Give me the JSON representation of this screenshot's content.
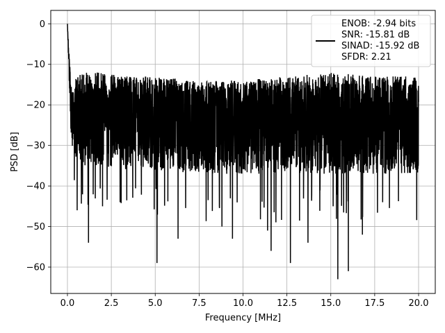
{
  "chart_data": {
    "type": "line",
    "title": "",
    "xlabel": "Frequency [MHz]",
    "ylabel": "PSD [dB]",
    "xlim": [
      -0.95,
      20.95
    ],
    "ylim": [
      -66.5,
      3.3
    ],
    "x_ticks": [
      0.0,
      2.5,
      5.0,
      7.5,
      10.0,
      12.5,
      15.0,
      17.5,
      20.0
    ],
    "x_tick_labels": [
      "0.0",
      "2.5",
      "5.0",
      "7.5",
      "10.0",
      "12.5",
      "15.0",
      "17.5",
      "20.0"
    ],
    "y_ticks": [
      0,
      -10,
      -20,
      -30,
      -40,
      -50,
      -60
    ],
    "y_tick_labels": [
      "0",
      "−10",
      "−20",
      "−30",
      "−40",
      "−50",
      "−60"
    ],
    "grid": true,
    "legend_position": "top-right",
    "series": [
      {
        "name": "ENOB: -2.94 bits\nSNR: -15.81 dB\nSINAD: -15.92 dB\nSFDR: 2.21",
        "color": "#000000",
        "envelope": {
          "x": [
            0.0,
            0.1,
            0.2,
            0.3,
            0.5,
            1.0,
            2.0,
            3.0,
            5.0,
            7.5,
            10.0,
            12.5,
            15.0,
            17.5,
            20.0
          ],
          "upper": [
            0.0,
            -8,
            -14,
            -17,
            -13,
            -12,
            -12,
            -13,
            -13,
            -14,
            -14,
            -13,
            -12,
            -13,
            -13
          ],
          "center": [
            0.0,
            -12,
            -20,
            -23,
            -23,
            -23,
            -23,
            -23,
            -23,
            -23,
            -23,
            -23,
            -23,
            -23,
            -23
          ],
          "lower": [
            0.0,
            -15,
            -27,
            -31,
            -33,
            -35,
            -35,
            -36,
            -36,
            -37,
            -37,
            -37,
            -37,
            -37,
            -37
          ]
        },
        "notable_minima": [
          {
            "x": 0.55,
            "y": -46
          },
          {
            "x": 1.2,
            "y": -54
          },
          {
            "x": 2.0,
            "y": -45
          },
          {
            "x": 3.0,
            "y": -44
          },
          {
            "x": 5.1,
            "y": -59
          },
          {
            "x": 6.3,
            "y": -53
          },
          {
            "x": 8.8,
            "y": -50
          },
          {
            "x": 9.4,
            "y": -53
          },
          {
            "x": 11.4,
            "y": -51
          },
          {
            "x": 11.6,
            "y": -56
          },
          {
            "x": 12.7,
            "y": -59
          },
          {
            "x": 13.7,
            "y": -54
          },
          {
            "x": 15.4,
            "y": -63
          },
          {
            "x": 16.0,
            "y": -61
          },
          {
            "x": 16.8,
            "y": -52
          }
        ]
      }
    ]
  }
}
